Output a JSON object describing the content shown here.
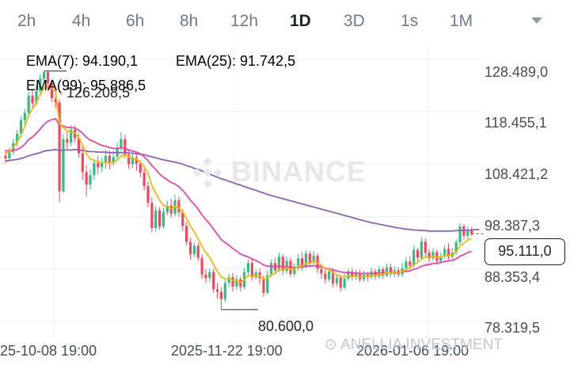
{
  "timeframes": [
    "2h",
    "4h",
    "6h",
    "8h",
    "12h",
    "1D",
    "3D",
    "1s",
    "1M"
  ],
  "active_timeframe": "1D",
  "indicators": {
    "ema7": {
      "label": "EMA(7): 94.190,1",
      "color": "#f0b90b"
    },
    "ema25": {
      "label": "EMA(25): 91.742,5",
      "color": "#e048a7"
    },
    "ema99": {
      "label": "EMA(99): 95.886,5",
      "color": "#8c62b8"
    }
  },
  "price_axis": [
    "128.489,0",
    "118.455,1",
    "108.421,2",
    "98.387,3",
    "88.353,4",
    "78.319,5"
  ],
  "current_price": "95.111,0",
  "time_axis": [
    "25-10-08 19:00",
    "2025-11-22 19:00",
    "2026-01-06 19:00"
  ],
  "annotations": {
    "high": "126.208,5",
    "low": "80.600,0"
  },
  "watermark": "BINANCE",
  "credit": "ANELLIA INVESTMENT",
  "colors": {
    "up": "#2ebd85",
    "down": "#f6465d"
  },
  "chart_data": {
    "type": "candlestick",
    "ylim": [
      75,
      131
    ],
    "candles": [
      [
        110.0,
        109.5,
        111.2,
        108.6
      ],
      [
        109.5,
        110.8,
        111.6,
        109.0
      ],
      [
        110.8,
        112.4,
        113.2,
        110.2
      ],
      [
        112.4,
        114.2,
        115.0,
        111.8
      ],
      [
        114.2,
        116.8,
        117.6,
        113.5
      ],
      [
        116.8,
        118.2,
        119.0,
        115.9
      ],
      [
        118.2,
        121.5,
        122.3,
        117.5
      ],
      [
        121.5,
        120.0,
        122.8,
        119.2
      ],
      [
        120.0,
        122.4,
        123.5,
        119.6
      ],
      [
        122.4,
        124.8,
        125.6,
        121.8
      ],
      [
        124.8,
        126.0,
        126.2,
        123.6
      ],
      [
        126.0,
        123.9,
        126.1,
        122.8
      ],
      [
        123.9,
        121.0,
        124.6,
        120.2
      ],
      [
        121.0,
        120.2,
        122.5,
        119.1
      ],
      [
        120.2,
        103.2,
        120.8,
        101.1
      ],
      [
        103.2,
        113.2,
        114.1,
        102.8
      ],
      [
        113.2,
        112.5,
        114.8,
        111.2
      ],
      [
        112.5,
        115.0,
        115.9,
        111.8
      ],
      [
        115.0,
        113.4,
        115.8,
        112.6
      ],
      [
        113.4,
        110.5,
        114.2,
        109.6
      ],
      [
        110.5,
        106.9,
        111.8,
        105.3
      ],
      [
        106.9,
        104.5,
        108.2,
        102.2
      ],
      [
        104.5,
        106.3,
        107.5,
        103.5
      ],
      [
        106.3,
        108.6,
        109.4,
        105.4
      ],
      [
        108.6,
        107.8,
        110.0,
        106.4
      ],
      [
        107.8,
        108.6,
        109.6,
        106.9
      ],
      [
        108.6,
        110.0,
        111.2,
        107.5
      ],
      [
        110.0,
        108.8,
        111.0,
        107.4
      ],
      [
        108.8,
        109.8,
        111.0,
        108.0
      ],
      [
        109.8,
        111.5,
        112.5,
        109.0
      ],
      [
        111.5,
        113.2,
        114.5,
        110.8
      ],
      [
        113.2,
        110.2,
        114.0,
        109.5
      ],
      [
        110.2,
        108.4,
        111.0,
        107.5
      ],
      [
        108.4,
        109.6,
        110.5,
        107.6
      ],
      [
        109.6,
        108.5,
        110.4,
        107.2
      ],
      [
        108.5,
        106.8,
        109.2,
        105.9
      ],
      [
        106.8,
        104.2,
        107.6,
        103.4
      ],
      [
        104.2,
        101.0,
        105.1,
        100.2
      ],
      [
        101.0,
        96.2,
        102.0,
        95.3
      ],
      [
        96.2,
        99.6,
        100.5,
        95.5
      ],
      [
        99.6,
        96.5,
        100.2,
        95.8
      ],
      [
        96.5,
        99.2,
        100.0,
        96.1
      ],
      [
        99.2,
        100.5,
        101.4,
        98.6
      ],
      [
        100.5,
        98.9,
        101.8,
        98.2
      ],
      [
        98.9,
        101.5,
        102.6,
        98.5
      ],
      [
        101.5,
        99.2,
        102.2,
        98.3
      ],
      [
        99.2,
        96.6,
        99.8,
        95.6
      ],
      [
        96.6,
        93.5,
        97.4,
        92.8
      ],
      [
        93.5,
        91.2,
        94.3,
        90.2
      ],
      [
        91.2,
        92.8,
        93.5,
        90.6
      ],
      [
        92.8,
        90.5,
        93.4,
        89.9
      ],
      [
        90.5,
        87.3,
        91.2,
        86.5
      ],
      [
        87.3,
        86.6,
        88.4,
        85.7
      ],
      [
        86.6,
        87.8,
        88.5,
        85.9
      ],
      [
        87.8,
        84.5,
        88.4,
        83.8
      ],
      [
        84.5,
        84.0,
        85.7,
        82.7
      ],
      [
        84.0,
        82.6,
        84.9,
        80.6
      ],
      [
        82.6,
        85.7,
        86.6,
        82.0
      ],
      [
        85.7,
        86.8,
        87.5,
        84.9
      ],
      [
        86.8,
        85.0,
        87.6,
        84.1
      ],
      [
        85.0,
        86.4,
        87.2,
        84.4
      ],
      [
        86.4,
        84.9,
        87.0,
        84.1
      ],
      [
        84.9,
        87.8,
        88.6,
        84.5
      ],
      [
        87.8,
        89.5,
        90.2,
        87.1
      ],
      [
        89.5,
        86.8,
        90.4,
        86.1
      ],
      [
        86.8,
        87.7,
        88.3,
        86.3
      ],
      [
        87.7,
        86.6,
        88.5,
        85.4
      ],
      [
        86.6,
        83.8,
        87.2,
        83.0
      ],
      [
        83.8,
        87.2,
        88.1,
        83.5
      ],
      [
        87.2,
        89.5,
        90.2,
        86.8
      ],
      [
        89.5,
        88.1,
        90.5,
        87.4
      ],
      [
        88.1,
        90.7,
        91.5,
        87.8
      ],
      [
        90.7,
        88.0,
        91.2,
        87.2
      ],
      [
        88.0,
        89.9,
        90.7,
        87.5
      ],
      [
        89.9,
        87.4,
        90.5,
        86.8
      ],
      [
        87.4,
        88.6,
        89.5,
        86.9
      ],
      [
        88.6,
        90.4,
        91.2,
        88.0
      ],
      [
        90.4,
        88.8,
        91.6,
        88.1
      ],
      [
        88.8,
        91.3,
        92.0,
        88.5
      ],
      [
        91.3,
        89.6,
        91.8,
        88.9
      ],
      [
        89.6,
        90.9,
        91.8,
        89.2
      ],
      [
        90.9,
        88.4,
        91.4,
        87.6
      ],
      [
        88.4,
        87.5,
        89.0,
        86.5
      ],
      [
        87.5,
        86.4,
        88.2,
        85.6
      ],
      [
        86.4,
        87.9,
        88.5,
        85.9
      ],
      [
        87.9,
        85.6,
        88.4,
        84.9
      ],
      [
        85.6,
        86.7,
        87.3,
        85.0
      ],
      [
        86.7,
        84.8,
        87.3,
        84.1
      ],
      [
        84.8,
        86.5,
        87.5,
        84.4
      ],
      [
        86.5,
        87.9,
        88.4,
        86.0
      ],
      [
        87.9,
        86.8,
        88.5,
        86.2
      ],
      [
        86.8,
        87.5,
        88.3,
        86.2
      ],
      [
        87.5,
        86.4,
        88.2,
        85.9
      ],
      [
        86.4,
        87.3,
        88.0,
        85.9
      ],
      [
        87.3,
        86.8,
        87.8,
        86.1
      ],
      [
        86.8,
        87.9,
        88.6,
        86.4
      ],
      [
        87.9,
        86.9,
        88.4,
        86.3
      ],
      [
        86.9,
        88.3,
        89.0,
        86.5
      ],
      [
        88.3,
        87.1,
        88.8,
        86.5
      ],
      [
        87.1,
        88.7,
        89.4,
        86.8
      ],
      [
        88.7,
        87.4,
        89.3,
        86.9
      ],
      [
        87.4,
        88.1,
        88.9,
        86.9
      ],
      [
        88.1,
        87.3,
        88.7,
        86.8
      ],
      [
        87.3,
        88.5,
        89.5,
        86.9
      ],
      [
        88.5,
        89.8,
        90.5,
        88.1
      ],
      [
        89.8,
        89.0,
        90.7,
        88.4
      ],
      [
        89.0,
        92.0,
        92.8,
        88.7
      ],
      [
        92.0,
        90.5,
        92.4,
        89.8
      ],
      [
        90.5,
        93.6,
        94.4,
        90.1
      ],
      [
        93.6,
        91.5,
        94.2,
        90.6
      ],
      [
        91.5,
        90.4,
        92.2,
        89.6
      ],
      [
        90.4,
        91.6,
        92.4,
        89.9
      ],
      [
        91.6,
        89.9,
        92.1,
        89.1
      ],
      [
        89.9,
        90.8,
        91.6,
        89.4
      ],
      [
        90.8,
        92.2,
        92.9,
        90.3
      ],
      [
        92.2,
        90.7,
        93.2,
        90.0
      ],
      [
        90.7,
        91.5,
        92.4,
        90.2
      ],
      [
        91.5,
        93.5,
        94.1,
        91.0
      ],
      [
        93.5,
        96.5,
        97.1,
        93.0
      ],
      [
        96.5,
        94.7,
        97.0,
        94.0
      ],
      [
        94.7,
        95.9,
        96.5,
        94.1
      ],
      [
        95.9,
        95.1,
        96.4,
        94.7
      ]
    ],
    "ema7": [
      110.5,
      110.8,
      111.6,
      112.6,
      114.0,
      115.6,
      117.7,
      119.0,
      120.2,
      121.6,
      123.0,
      123.4,
      122.9,
      122.3,
      116.2,
      115.4,
      114.7,
      114.5,
      114.4,
      113.5,
      112.0,
      110.4,
      109.4,
      109.1,
      108.8,
      108.6,
      108.8,
      108.6,
      108.7,
      109.1,
      110.0,
      110.2,
      109.8,
      109.6,
      109.3,
      108.8,
      107.9,
      106.6,
      104.3,
      102.9,
      101.5,
      100.5,
      100.4,
      99.9,
      100.3,
      100.0,
      99.3,
      98.0,
      96.6,
      95.4,
      94.1,
      92.7,
      91.5,
      90.6,
      89.2,
      87.9,
      86.8,
      86.5,
      86.6,
      86.2,
      86.0,
      85.8,
      86.3,
      87.1,
      87.0,
      87.1,
      87.0,
      86.4,
      86.6,
      87.3,
      87.5,
      88.3,
      88.2,
      88.6,
      88.3,
      88.3,
      88.9,
      88.9,
      89.4,
      89.5,
      89.8,
      89.5,
      89.1,
      88.4,
      88.3,
      87.6,
      87.3,
      86.9,
      86.8,
      87.0,
      86.9,
      87.0,
      86.8,
      86.9,
      86.9,
      87.1,
      87.1,
      87.4,
      87.4,
      87.7,
      87.6,
      87.8,
      87.7,
      87.8,
      88.3,
      88.5,
      89.2,
      89.6,
      90.3,
      90.6,
      90.5,
      90.8,
      90.6,
      90.6,
      90.9,
      90.9,
      91.0,
      91.6,
      92.8,
      93.3,
      93.9,
      94.2
    ],
    "ema25": [
      111.0,
      110.9,
      111.0,
      111.2,
      111.6,
      112.2,
      113.1,
      113.6,
      114.3,
      115.1,
      116.0,
      116.6,
      116.9,
      117.1,
      115.9,
      115.7,
      115.4,
      115.4,
      115.3,
      114.9,
      114.3,
      113.5,
      113.0,
      112.7,
      112.3,
      112.0,
      111.8,
      111.6,
      111.4,
      111.4,
      111.5,
      111.4,
      111.1,
      110.9,
      110.7,
      110.4,
      109.8,
      109.1,
      108.1,
      107.4,
      106.5,
      105.9,
      105.4,
      104.9,
      104.6,
      104.1,
      103.4,
      102.5,
      101.5,
      100.7,
      99.8,
      98.7,
      97.8,
      97.0,
      96.0,
      95.0,
      94.0,
      93.4,
      92.9,
      92.3,
      91.8,
      91.2,
      90.9,
      90.7,
      90.3,
      90.0,
      89.6,
      89.1,
      88.9,
      88.9,
      88.8,
      88.9,
      88.8,
      88.8,
      88.7,
      88.6,
      88.7,
      88.7,
      88.9,
      88.9,
      89.0,
      88.9,
      88.8,
      88.5,
      88.4,
      88.2,
      88.0,
      87.8,
      87.7,
      87.7,
      87.6,
      87.6,
      87.5,
      87.5,
      87.5,
      87.5,
      87.5,
      87.6,
      87.6,
      87.7,
      87.7,
      87.7,
      87.7,
      87.8,
      87.9,
      88.0,
      88.3,
      88.5,
      88.9,
      89.1,
      89.2,
      89.4,
      89.5,
      89.6,
      89.8,
      89.9,
      90.0,
      90.3,
      90.8,
      91.1,
      91.5,
      91.7
    ],
    "ema99": [
      109.0,
      109.1,
      109.2,
      109.3,
      109.5,
      109.7,
      110.0,
      110.2,
      110.4,
      110.6,
      110.9,
      111.0,
      111.1,
      111.2,
      111.0,
      111.1,
      111.1,
      111.1,
      111.2,
      111.1,
      111.0,
      110.9,
      110.8,
      110.8,
      110.7,
      110.7,
      110.7,
      110.6,
      110.6,
      110.6,
      110.6,
      110.6,
      110.5,
      110.5,
      110.4,
      110.3,
      110.2,
      110.0,
      109.8,
      109.6,
      109.4,
      109.2,
      109.1,
      108.9,
      108.8,
      108.6,
      108.4,
      108.1,
      107.9,
      107.6,
      107.4,
      107.1,
      106.8,
      106.5,
      106.2,
      105.9,
      105.6,
      105.4,
      105.1,
      104.9,
      104.6,
      104.4,
      104.1,
      103.9,
      103.6,
      103.4,
      103.1,
      102.9,
      102.6,
      102.4,
      102.2,
      102.0,
      101.8,
      101.6,
      101.4,
      101.2,
      101.0,
      100.8,
      100.6,
      100.4,
      100.2,
      100.0,
      99.8,
      99.6,
      99.4,
      99.2,
      99.0,
      98.8,
      98.6,
      98.4,
      98.2,
      98.0,
      97.8,
      97.6,
      97.4,
      97.2,
      97.1,
      96.9,
      96.8,
      96.6,
      96.5,
      96.3,
      96.2,
      96.1,
      96.0,
      95.9,
      95.8,
      95.8,
      95.7,
      95.7,
      95.6,
      95.6,
      95.6,
      95.6,
      95.6,
      95.6,
      95.6,
      95.7,
      95.7,
      95.7,
      95.8,
      95.8,
      95.9,
      95.9
    ]
  }
}
